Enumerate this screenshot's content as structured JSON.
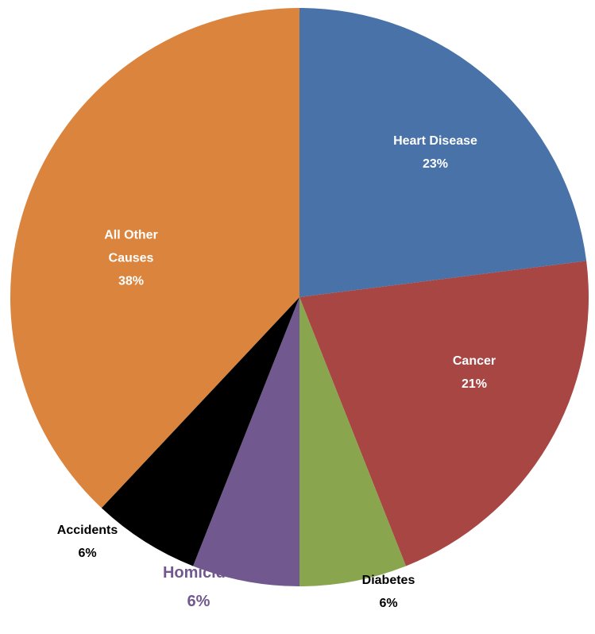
{
  "chart_data": {
    "type": "pie",
    "categories": [
      "Heart Disease",
      "Cancer",
      "Diabetes",
      "Homicide",
      "Accidents",
      "All Other Causes"
    ],
    "values": [
      23,
      21,
      6,
      6,
      6,
      38
    ],
    "value_labels": [
      "23%",
      "21%",
      "6%",
      "6%",
      "6%",
      "38%"
    ],
    "colors": [
      "#4872a8",
      "#a84644",
      "#89a54e",
      "#71598f",
      "#000000",
      "#db843d"
    ]
  }
}
